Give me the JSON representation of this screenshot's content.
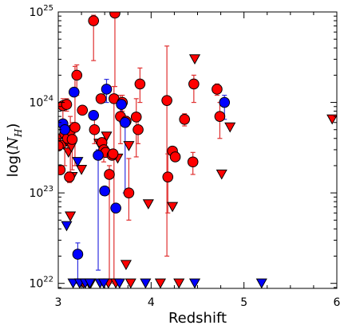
{
  "chart_data": {
    "type": "scatter",
    "title": "",
    "xlabel": "Redshift",
    "ylabel": "log(N_H)",
    "ylabel_main": "log(",
    "ylabel_sub": "H",
    "ylabel_close": ")",
    "xlim": [
      3,
      6
    ],
    "ylim": [
      8.8e+21,
      1e+25
    ],
    "yscale": "log",
    "x_ticks": [
      {
        "value": 3,
        "label": "3"
      },
      {
        "value": 4,
        "label": "4"
      },
      {
        "value": 5,
        "label": "5"
      },
      {
        "value": 6,
        "label": "6"
      }
    ],
    "y_ticks": [
      {
        "value": 1e+22,
        "base": "10",
        "exp": "22"
      },
      {
        "value": 1e+23,
        "base": "10",
        "exp": "23"
      },
      {
        "value": 1e+24,
        "base": "10",
        "exp": "24"
      },
      {
        "value": 1e+25,
        "base": "10",
        "exp": "25"
      }
    ],
    "grid": false,
    "colors": {
      "red_fill": "#ff0000",
      "red_bar": "#e03030",
      "blue_fill": "#0000ff",
      "blue_bar": "#3030e0",
      "edge": "#000000"
    },
    "series": [
      {
        "group": "red",
        "marker": "circle",
        "points": [
          {
            "x": 3.0,
            "y": 3.3e+23
          },
          {
            "x": 3.02,
            "y": 1.8e+23
          },
          {
            "x": 3.05,
            "y": 9.2e+23,
            "lo": 3.5e+23,
            "hi": 1.1e+24
          },
          {
            "x": 3.07,
            "y": 4.5e+23,
            "lo": 2e+23,
            "hi": 5.5e+23
          },
          {
            "x": 3.09,
            "y": 9.5e+23,
            "lo": 8e+23,
            "hi": 1.1e+24
          },
          {
            "x": 3.1,
            "y": 4e+23,
            "lo": 3e+23,
            "hi": 4.6e+23
          },
          {
            "x": 3.12,
            "y": 1.5e+23,
            "lo": 1.3e+23,
            "hi": 1.7e+23
          },
          {
            "x": 3.13,
            "y": 4.9e+23,
            "lo": 1.5e+23,
            "hi": 7e+23
          },
          {
            "x": 3.15,
            "y": 3.9e+23,
            "lo": 1.8e+23,
            "hi": 6e+23
          },
          {
            "x": 3.18,
            "y": 5.3e+23,
            "lo": 2e+23,
            "hi": 2.5e+24
          },
          {
            "x": 3.2,
            "y": 2e+24,
            "lo": 1.2e+24,
            "hi": 2.6e+24
          },
          {
            "x": 3.26,
            "y": 8.2e+23
          },
          {
            "x": 3.38,
            "y": 8e+24,
            "lo": 2.9e+24,
            "hi": 9.2e+24
          },
          {
            "x": 3.39,
            "y": 5e+23,
            "lo": 3.5e+23,
            "hi": 7.5e+23
          },
          {
            "x": 3.46,
            "y": 1.1e+24
          },
          {
            "x": 3.47,
            "y": 3.6e+23
          },
          {
            "x": 3.49,
            "y": 3e+23,
            "lo": 2.2e+23,
            "hi": 4e+23
          },
          {
            "x": 3.51,
            "y": 2.8e+23
          },
          {
            "x": 3.55,
            "y": 1.6e+23,
            "lo": 1.1e+22,
            "hi": 2e+23
          },
          {
            "x": 3.58,
            "y": 2.6e+23
          },
          {
            "x": 3.59,
            "y": 2.7e+23
          },
          {
            "x": 3.6,
            "y": 1.1e+24,
            "lo": 1e+22,
            "hi": 1.5e+24
          },
          {
            "x": 3.61,
            "y": 9.7e+24,
            "lo": 1.5e+24,
            "hi": 1e+25
          },
          {
            "x": 3.67,
            "y": 7e+23,
            "lo": 3.5e+23,
            "hi": 1.2e+24
          },
          {
            "x": 3.69,
            "y": 1e+24,
            "lo": 8e+23,
            "hi": 1.2e+24
          },
          {
            "x": 3.73,
            "y": 6.2e+23,
            "lo": 5.5e+23,
            "hi": 7e+23
          },
          {
            "x": 3.76,
            "y": 1e+23,
            "lo": 5e+22,
            "hi": 2.4e+23
          },
          {
            "x": 3.84,
            "y": 6.9e+23,
            "lo": 2.5e+23,
            "hi": 1.1e+24
          },
          {
            "x": 3.86,
            "y": 5e+23,
            "lo": 3.5e+23,
            "hi": 6.5e+23
          },
          {
            "x": 3.88,
            "y": 1.6e+24,
            "lo": 1e+24,
            "hi": 2.4e+24
          },
          {
            "x": 4.17,
            "y": 1.05e+24,
            "lo": 2e+22,
            "hi": 4.2e+24
          },
          {
            "x": 4.18,
            "y": 1.5e+23,
            "lo": 6e+22,
            "hi": 2.7e+23
          },
          {
            "x": 4.23,
            "y": 2.9e+23
          },
          {
            "x": 4.26,
            "y": 2.5e+23
          },
          {
            "x": 4.36,
            "y": 6.5e+23,
            "lo": 5.5e+23,
            "hi": 7.5e+23
          },
          {
            "x": 4.45,
            "y": 2.2e+23,
            "lo": 1.6e+23,
            "hi": 2.8e+23
          },
          {
            "x": 4.46,
            "y": 1.6e+24,
            "lo": 1e+24,
            "hi": 2e+24
          },
          {
            "x": 4.71,
            "y": 1.4e+24,
            "lo": 1.2e+24,
            "hi": 1.6e+24
          },
          {
            "x": 4.74,
            "y": 7e+23,
            "lo": 4e+23,
            "hi": 1e+24
          }
        ]
      },
      {
        "group": "blue",
        "marker": "circle",
        "points": [
          {
            "x": 3.05,
            "y": 5.8e+23
          },
          {
            "x": 3.07,
            "y": 5e+23
          },
          {
            "x": 3.17,
            "y": 1.3e+24
          },
          {
            "x": 3.21,
            "y": 2.1e+22,
            "lo": 1e+22,
            "hi": 2.8e+22
          },
          {
            "x": 3.38,
            "y": 7.2e+23
          },
          {
            "x": 3.43,
            "y": 2.6e+23,
            "lo": 1.4e+22,
            "hi": 3e+23
          },
          {
            "x": 3.5,
            "y": 1.05e+23
          },
          {
            "x": 3.52,
            "y": 1.4e+24,
            "lo": 1e+24,
            "hi": 1.8e+24
          },
          {
            "x": 3.62,
            "y": 6.8e+22
          },
          {
            "x": 3.68,
            "y": 9.5e+23,
            "lo": 6e+23,
            "hi": 1.1e+24
          },
          {
            "x": 3.72,
            "y": 6e+23,
            "lo": 1e+23,
            "hi": 7e+23
          },
          {
            "x": 4.79,
            "y": 1e+24,
            "lo": 6.5e+23,
            "hi": 1.2e+24
          }
        ]
      },
      {
        "group": "red",
        "marker": "triangle-down",
        "points": [
          {
            "x": 3.01,
            "y": 4e+23
          },
          {
            "x": 3.06,
            "y": 3.4e+23
          },
          {
            "x": 3.09,
            "y": 3.7e+23
          },
          {
            "x": 3.11,
            "y": 2.8e+23
          },
          {
            "x": 3.13,
            "y": 5.5e+22
          },
          {
            "x": 3.14,
            "y": 3.2e+23
          },
          {
            "x": 3.15,
            "y": 1.5e+23
          },
          {
            "x": 3.23,
            "y": 1e+22
          },
          {
            "x": 3.25,
            "y": 1.8e+23
          },
          {
            "x": 3.27,
            "y": 1e+22
          },
          {
            "x": 3.29,
            "y": 1e+22
          },
          {
            "x": 3.33,
            "y": 1e+22
          },
          {
            "x": 3.35,
            "y": 1e+22
          },
          {
            "x": 3.44,
            "y": 3.5e+23
          },
          {
            "x": 3.52,
            "y": 4.2e+23
          },
          {
            "x": 3.54,
            "y": 1e+22
          },
          {
            "x": 3.62,
            "y": 1e+22
          },
          {
            "x": 3.64,
            "y": 2.4e+23
          },
          {
            "x": 3.73,
            "y": 1.6e+22
          },
          {
            "x": 3.76,
            "y": 3.3e+23
          },
          {
            "x": 3.78,
            "y": 1e+22
          },
          {
            "x": 3.97,
            "y": 7.5e+22
          },
          {
            "x": 4.1,
            "y": 1e+22
          },
          {
            "x": 4.23,
            "y": 7e+22
          },
          {
            "x": 4.3,
            "y": 1e+22
          },
          {
            "x": 4.47,
            "y": 3e+24
          },
          {
            "x": 4.76,
            "y": 1.6e+23
          },
          {
            "x": 4.85,
            "y": 5.3e+23
          },
          {
            "x": 5.95,
            "y": 6.5e+23
          }
        ]
      },
      {
        "group": "blue",
        "marker": "triangle-down",
        "points": [
          {
            "x": 3.09,
            "y": 4.3e+22
          },
          {
            "x": 3.16,
            "y": 1e+22
          },
          {
            "x": 3.21,
            "y": 2.2e+23
          },
          {
            "x": 3.23,
            "y": 1e+22
          },
          {
            "x": 3.29,
            "y": 1e+22
          },
          {
            "x": 3.34,
            "y": 1e+22
          },
          {
            "x": 3.45,
            "y": 1e+22
          },
          {
            "x": 3.49,
            "y": 1e+22
          },
          {
            "x": 3.66,
            "y": 1e+22
          },
          {
            "x": 3.94,
            "y": 1e+22
          },
          {
            "x": 4.47,
            "y": 1e+22
          },
          {
            "x": 5.19,
            "y": 1e+22
          }
        ]
      }
    ]
  }
}
